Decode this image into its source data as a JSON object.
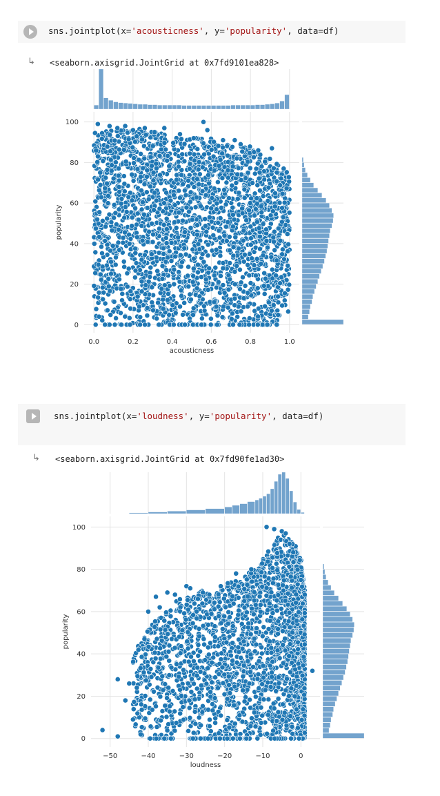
{
  "cells": [
    {
      "code": {
        "prefix": "sns.jointplot(x=",
        "x": "'acousticness'",
        "mid": ", y=",
        "y": "'popularity'",
        "suffix": ", data=df)"
      },
      "output_icon": "output-arrow-icon",
      "output": "<seaborn.axisgrid.JointGrid at 0x7fd9101ea828>"
    },
    {
      "code": {
        "prefix": "sns.jointplot(x=",
        "x": "'loudness'",
        "mid": ", y=",
        "y": "'popularity'",
        "suffix": ", data=df)"
      },
      "output_icon": "output-arrow-icon",
      "output": "<seaborn.axisgrid.JointGrid at 0x7fd90fe1ad30>"
    }
  ],
  "colors": {
    "point": "#1f77b4",
    "point_edge": "#ffffff",
    "hist": "#5b93c4",
    "grid": "#e3e3e3",
    "axis_text": "#333333"
  },
  "chart_data": [
    {
      "type": "scatter",
      "xlabel": "acousticness",
      "ylabel": "popularity",
      "xticks": [
        "0.0",
        "0.2",
        "0.4",
        "0.6",
        "0.8",
        "1.0"
      ],
      "yticks": [
        "0",
        "20",
        "40",
        "60",
        "80",
        "100"
      ],
      "xlim": [
        -0.05,
        1.05
      ],
      "ylim": [
        -4,
        105
      ],
      "grid": true,
      "marginal_x": {
        "type": "histogram",
        "bin_edges": [
          0.0,
          0.025,
          0.05,
          0.075,
          0.1,
          0.125,
          0.15,
          0.175,
          0.2,
          0.225,
          0.25,
          0.275,
          0.3,
          0.325,
          0.35,
          0.375,
          0.4,
          0.425,
          0.45,
          0.475,
          0.5,
          0.525,
          0.55,
          0.575,
          0.6,
          0.625,
          0.65,
          0.675,
          0.7,
          0.725,
          0.75,
          0.775,
          0.8,
          0.825,
          0.85,
          0.875,
          0.9,
          0.925,
          0.95,
          0.975,
          1.0
        ],
        "relative_counts": [
          0.1,
          1.0,
          0.28,
          0.22,
          0.18,
          0.16,
          0.15,
          0.14,
          0.13,
          0.12,
          0.12,
          0.11,
          0.11,
          0.1,
          0.1,
          0.1,
          0.1,
          0.1,
          0.09,
          0.09,
          0.09,
          0.09,
          0.09,
          0.09,
          0.09,
          0.09,
          0.09,
          0.09,
          0.1,
          0.1,
          0.1,
          0.1,
          0.1,
          0.11,
          0.11,
          0.12,
          0.13,
          0.15,
          0.2,
          0.36
        ]
      },
      "marginal_y": {
        "type": "histogram",
        "bin_edges": [
          0,
          2.5,
          5,
          7.5,
          10,
          12.5,
          15,
          17.5,
          20,
          22.5,
          25,
          27.5,
          30,
          32.5,
          35,
          37.5,
          40,
          42.5,
          45,
          47.5,
          50,
          52.5,
          55,
          57.5,
          60,
          62.5,
          65,
          67.5,
          70,
          72.5,
          75,
          77.5,
          80,
          82.5
        ],
        "relative_counts": [
          1.0,
          0.15,
          0.18,
          0.2,
          0.24,
          0.26,
          0.3,
          0.34,
          0.38,
          0.42,
          0.46,
          0.5,
          0.54,
          0.57,
          0.6,
          0.62,
          0.64,
          0.66,
          0.68,
          0.72,
          0.75,
          0.76,
          0.72,
          0.66,
          0.58,
          0.48,
          0.38,
          0.28,
          0.2,
          0.13,
          0.08,
          0.05,
          0.03,
          0.02
        ]
      },
      "envelope": {
        "x": [
          0.0,
          0.1,
          0.2,
          0.3,
          0.4,
          0.5,
          0.6,
          0.7,
          0.8,
          0.9,
          1.0
        ],
        "y_max": [
          96,
          96,
          97,
          96,
          93,
          93,
          92,
          88,
          88,
          82,
          75
        ]
      },
      "outliers": [
        [
          0.02,
          99
        ],
        [
          0.08,
          98
        ],
        [
          0.12,
          97
        ],
        [
          0.16,
          98
        ],
        [
          0.2,
          96
        ],
        [
          0.26,
          97
        ],
        [
          0.31,
          95
        ],
        [
          0.36,
          97
        ],
        [
          0.44,
          94
        ],
        [
          0.51,
          92
        ],
        [
          0.56,
          100
        ],
        [
          0.58,
          96
        ],
        [
          0.66,
          91
        ],
        [
          0.72,
          91
        ],
        [
          0.75,
          89
        ],
        [
          0.84,
          86
        ],
        [
          0.91,
          87
        ],
        [
          0.97,
          77
        ]
      ]
    },
    {
      "type": "scatter",
      "xlabel": "loudness",
      "ylabel": "popularity",
      "xticks": [
        "−50",
        "−40",
        "−30",
        "−20",
        "−10",
        "0"
      ],
      "yticks": [
        "0",
        "20",
        "40",
        "60",
        "80",
        "100"
      ],
      "xlim": [
        -55,
        5
      ],
      "ylim": [
        -4,
        105
      ],
      "grid": true,
      "marginal_x": {
        "type": "histogram",
        "bin_edges": [
          -45,
          -40,
          -35,
          -30,
          -25,
          -20,
          -18,
          -16,
          -14,
          -12,
          -11,
          -10,
          -9,
          -8,
          -7,
          -6,
          -5,
          -4,
          -3,
          -2,
          -1,
          0,
          1
        ],
        "relative_counts": [
          0.02,
          0.04,
          0.06,
          0.09,
          0.12,
          0.16,
          0.2,
          0.24,
          0.29,
          0.33,
          0.37,
          0.42,
          0.48,
          0.6,
          0.78,
          0.95,
          1.0,
          0.85,
          0.55,
          0.28,
          0.1,
          0.03
        ]
      },
      "marginal_y": {
        "type": "histogram",
        "bin_edges": [
          0,
          2.5,
          5,
          7.5,
          10,
          12.5,
          15,
          17.5,
          20,
          22.5,
          25,
          27.5,
          30,
          32.5,
          35,
          37.5,
          40,
          42.5,
          45,
          47.5,
          50,
          52.5,
          55,
          57.5,
          60,
          62.5,
          65,
          67.5,
          70,
          72.5,
          75,
          77.5,
          80,
          82.5
        ],
        "relative_counts": [
          1.0,
          0.15,
          0.18,
          0.2,
          0.24,
          0.26,
          0.3,
          0.34,
          0.38,
          0.42,
          0.46,
          0.5,
          0.54,
          0.57,
          0.6,
          0.62,
          0.64,
          0.66,
          0.68,
          0.72,
          0.75,
          0.76,
          0.72,
          0.66,
          0.58,
          0.48,
          0.38,
          0.28,
          0.2,
          0.13,
          0.08,
          0.05,
          0.03,
          0.02
        ]
      },
      "envelope": {
        "x": [
          -44,
          -40,
          -36,
          -32,
          -28,
          -24,
          -20,
          -16,
          -12,
          -8,
          -6,
          -4,
          -2,
          0,
          1
        ],
        "y_max": [
          40,
          52,
          60,
          66,
          70,
          70,
          73,
          76,
          80,
          90,
          95,
          97,
          94,
          85,
          70
        ]
      },
      "outliers": [
        [
          -52,
          4
        ],
        [
          -48,
          28
        ],
        [
          -48,
          1
        ],
        [
          -46,
          18
        ],
        [
          -45,
          26
        ],
        [
          -44,
          9
        ],
        [
          -43,
          24
        ],
        [
          -42,
          2
        ],
        [
          -41,
          47
        ],
        [
          -40,
          60
        ],
        [
          -38,
          67
        ],
        [
          -37,
          62
        ],
        [
          -35,
          69
        ],
        [
          -33,
          68
        ],
        [
          -30,
          72
        ],
        [
          -29,
          71
        ],
        [
          -27,
          66
        ],
        [
          -24,
          68
        ],
        [
          -21,
          72
        ],
        [
          -17,
          78
        ],
        [
          -13,
          80
        ],
        [
          -9,
          100
        ],
        [
          -7,
          99
        ],
        [
          -5,
          98
        ],
        [
          -4,
          97
        ],
        [
          -3,
          92
        ],
        [
          -2,
          88
        ],
        [
          0,
          75
        ],
        [
          1,
          68
        ],
        [
          3,
          32
        ]
      ]
    }
  ]
}
